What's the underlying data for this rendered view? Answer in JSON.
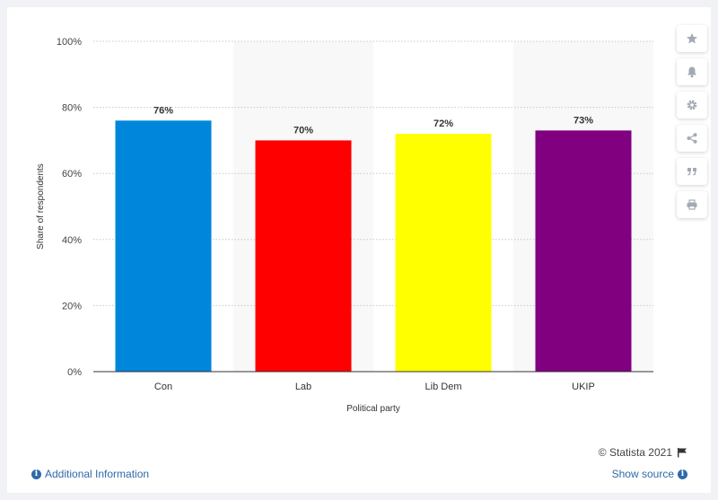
{
  "chart_data": {
    "type": "bar",
    "categories": [
      "Con",
      "Lab",
      "Lib Dem",
      "UKIP"
    ],
    "values": [
      76,
      70,
      72,
      73
    ],
    "data_labels": [
      "76%",
      "70%",
      "72%",
      "73%"
    ],
    "colors": [
      "#0087dc",
      "#ff0000",
      "#ffff00",
      "#800080"
    ],
    "ylim": [
      0,
      100
    ],
    "yticks": [
      0,
      20,
      40,
      60,
      80,
      100
    ],
    "ytick_labels": [
      "0%",
      "20%",
      "40%",
      "60%",
      "80%",
      "100%"
    ],
    "xlabel": "Political party",
    "ylabel": "Share of respondents",
    "grid": true
  },
  "toolbar": {
    "items": [
      {
        "icon": "star-icon"
      },
      {
        "icon": "bell-icon"
      },
      {
        "icon": "gear-icon"
      },
      {
        "icon": "share-icon"
      },
      {
        "icon": "quote-icon"
      },
      {
        "icon": "print-icon"
      }
    ]
  },
  "footer": {
    "credit": "© Statista 2021",
    "additional_info": "Additional Information",
    "show_source": "Show source"
  }
}
